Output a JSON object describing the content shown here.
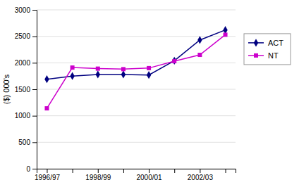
{
  "chart_data": {
    "type": "line",
    "ylabel": "($) 000's",
    "categories": [
      "1996/97",
      null,
      "1998/99",
      null,
      "2000/01",
      null,
      "2002/03",
      null
    ],
    "series": [
      {
        "name": "ACT",
        "color": "#000080",
        "marker": "diamond",
        "values": [
          1690,
          1750,
          1780,
          1780,
          1770,
          2040,
          2430,
          2620
        ]
      },
      {
        "name": "NT",
        "color": "#cc00cc",
        "marker": "square",
        "values": [
          1140,
          1910,
          1890,
          1880,
          1900,
          2030,
          2150,
          2530
        ]
      }
    ],
    "ylim": [
      0,
      3000
    ],
    "yticks": [
      0,
      500,
      1000,
      1500,
      2000,
      2500,
      3000
    ],
    "grid": true,
    "legend": "right"
  }
}
